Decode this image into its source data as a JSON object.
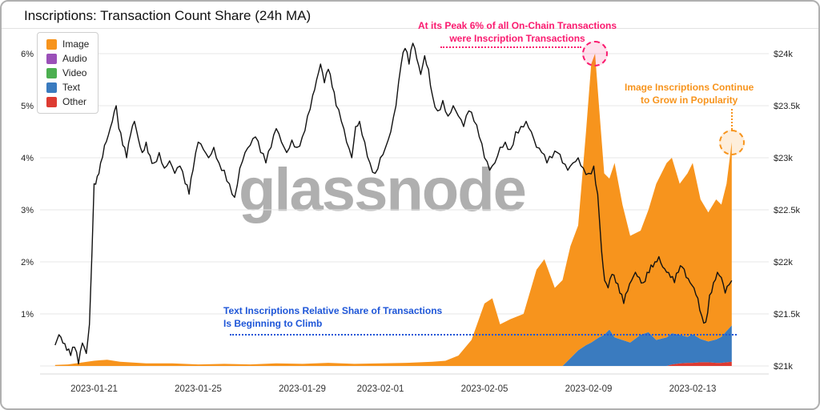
{
  "title": "Inscriptions: Transaction Count Share (24h MA)",
  "watermark": "glassnode",
  "legend": [
    {
      "label": "Image",
      "color": "#f7941d"
    },
    {
      "label": "Audio",
      "color": "#9b50b8"
    },
    {
      "label": "Video",
      "color": "#4caf50"
    },
    {
      "label": "Text",
      "color": "#3a7bbf"
    },
    {
      "label": "Other",
      "color": "#dd3b32"
    }
  ],
  "annotations": {
    "peak": {
      "line1": "At its Peak 6% of all On-Chain Transactions",
      "line2": "were Inscription Transactions",
      "color": "#fa1a6f"
    },
    "growth": {
      "line1": "Image Inscriptions Continue",
      "line2": "to Grow in Popularity",
      "color": "#f7941d"
    },
    "text": {
      "line1": "Text Inscriptions Relative Share of Transactions",
      "line2": "Is Beginning to Climb",
      "color": "#1e56d8"
    }
  },
  "chart_data": {
    "type": "line+stacked-area",
    "title": "Inscriptions: Transaction Count Share (24h MA)",
    "grid": true,
    "legend_position": "top-left",
    "x_axis": {
      "unit": "days since 2023-01-20",
      "tick_days": [
        1,
        5,
        9,
        12,
        16,
        20,
        24
      ],
      "tick_labels": [
        "2023-01-21",
        "2023-01-25",
        "2023-01-29",
        "2023-02-01",
        "2023-02-05",
        "2023-02-09",
        "2023-02-13"
      ]
    },
    "left_axis": {
      "unit": "share of transactions %",
      "range": [
        0,
        6
      ],
      "ticks": [
        "6%",
        "5%",
        "4%",
        "3%",
        "2%",
        "1%"
      ]
    },
    "right_axis": {
      "unit": "price USD",
      "range": [
        21,
        24
      ],
      "ticks": [
        "$24k",
        "$23.5k",
        "$23k",
        "$22.5k",
        "$22k",
        "$21.5k",
        "$21k"
      ]
    },
    "price_line": {
      "name": "price",
      "color": "#111111",
      "axis": "right",
      "points": [
        [
          -0.5,
          21.2
        ],
        [
          -0.35,
          21.3
        ],
        [
          -0.2,
          21.22
        ],
        [
          -0.05,
          21.15
        ],
        [
          0.1,
          21.1
        ],
        [
          0.25,
          21.18
        ],
        [
          0.4,
          21.02
        ],
        [
          0.55,
          21.22
        ],
        [
          0.7,
          21.12
        ],
        [
          0.82,
          21.4
        ],
        [
          0.92,
          22.1
        ],
        [
          1,
          22.75
        ],
        [
          1.12,
          22.82
        ],
        [
          1.25,
          22.95
        ],
        [
          1.4,
          23.12
        ],
        [
          1.55,
          23.22
        ],
        [
          1.7,
          23.35
        ],
        [
          1.85,
          23.5
        ],
        [
          1.95,
          23.28
        ],
        [
          2.1,
          23.12
        ],
        [
          2.25,
          23
        ],
        [
          2.4,
          23.22
        ],
        [
          2.55,
          23.35
        ],
        [
          2.7,
          23.18
        ],
        [
          2.85,
          23.05
        ],
        [
          3,
          23.15
        ],
        [
          3.15,
          23.02
        ],
        [
          3.3,
          22.95
        ],
        [
          3.5,
          23.05
        ],
        [
          3.7,
          22.9
        ],
        [
          3.9,
          22.97
        ],
        [
          4.1,
          22.85
        ],
        [
          4.3,
          22.92
        ],
        [
          4.5,
          22.75
        ],
        [
          4.65,
          22.65
        ],
        [
          4.8,
          22.88
        ],
        [
          5,
          23.15
        ],
        [
          5.2,
          23.08
        ],
        [
          5.4,
          23
        ],
        [
          5.6,
          23.1
        ],
        [
          5.8,
          22.95
        ],
        [
          6,
          22.88
        ],
        [
          6.2,
          22.75
        ],
        [
          6.4,
          22.62
        ],
        [
          6.6,
          22.9
        ],
        [
          6.8,
          23.05
        ],
        [
          7,
          23.12
        ],
        [
          7.2,
          23.2
        ],
        [
          7.4,
          23.05
        ],
        [
          7.6,
          22.95
        ],
        [
          7.8,
          23.1
        ],
        [
          8,
          23.28
        ],
        [
          8.2,
          23.15
        ],
        [
          8.4,
          23.05
        ],
        [
          8.6,
          23.17
        ],
        [
          8.8,
          23.1
        ],
        [
          9,
          23.2
        ],
        [
          9.2,
          23.4
        ],
        [
          9.4,
          23.6
        ],
        [
          9.55,
          23.75
        ],
        [
          9.7,
          23.9
        ],
        [
          9.85,
          23.72
        ],
        [
          10,
          23.85
        ],
        [
          10.15,
          23.68
        ],
        [
          10.3,
          23.5
        ],
        [
          10.5,
          23.35
        ],
        [
          10.7,
          23.15
        ],
        [
          10.9,
          23
        ],
        [
          11.05,
          23.3
        ],
        [
          11.2,
          23.35
        ],
        [
          11.4,
          23.15
        ],
        [
          11.6,
          22.95
        ],
        [
          11.8,
          22.85
        ],
        [
          12,
          23
        ],
        [
          12.2,
          23.1
        ],
        [
          12.4,
          23.25
        ],
        [
          12.6,
          23.5
        ],
        [
          12.8,
          23.9
        ],
        [
          12.95,
          24.05
        ],
        [
          13.1,
          23.9
        ],
        [
          13.25,
          24.1
        ],
        [
          13.4,
          23.95
        ],
        [
          13.55,
          23.8
        ],
        [
          13.7,
          23.98
        ],
        [
          13.85,
          23.85
        ],
        [
          14,
          23.6
        ],
        [
          14.2,
          23.45
        ],
        [
          14.4,
          23.55
        ],
        [
          14.6,
          23.4
        ],
        [
          14.8,
          23.5
        ],
        [
          15,
          23.4
        ],
        [
          15.2,
          23.3
        ],
        [
          15.4,
          23.45
        ],
        [
          15.6,
          23.35
        ],
        [
          15.8,
          23.2
        ],
        [
          16,
          23
        ],
        [
          16.2,
          22.88
        ],
        [
          16.4,
          22.95
        ],
        [
          16.6,
          23.1
        ],
        [
          16.8,
          23.15
        ],
        [
          17,
          23.08
        ],
        [
          17.2,
          23.25
        ],
        [
          17.4,
          23.3
        ],
        [
          17.6,
          23.35
        ],
        [
          17.8,
          23.25
        ],
        [
          18,
          23.1
        ],
        [
          18.2,
          23.05
        ],
        [
          18.4,
          22.95
        ],
        [
          18.6,
          23
        ],
        [
          18.8,
          23.05
        ],
        [
          19,
          22.95
        ],
        [
          19.2,
          22.88
        ],
        [
          19.4,
          22.95
        ],
        [
          19.6,
          23
        ],
        [
          19.8,
          22.9
        ],
        [
          20,
          22.85
        ],
        [
          20.2,
          22.92
        ],
        [
          20.35,
          22.65
        ],
        [
          20.5,
          22.1
        ],
        [
          20.62,
          21.82
        ],
        [
          20.75,
          21.75
        ],
        [
          20.9,
          21.88
        ],
        [
          21.05,
          21.8
        ],
        [
          21.2,
          21.7
        ],
        [
          21.35,
          21.6
        ],
        [
          21.5,
          21.72
        ],
        [
          21.65,
          21.82
        ],
        [
          21.8,
          21.9
        ],
        [
          21.95,
          21.85
        ],
        [
          22.1,
          21.8
        ],
        [
          22.25,
          21.9
        ],
        [
          22.4,
          21.97
        ],
        [
          22.55,
          22
        ],
        [
          22.7,
          22.05
        ],
        [
          22.85,
          21.95
        ],
        [
          23,
          21.9
        ],
        [
          23.15,
          21.85
        ],
        [
          23.3,
          21.8
        ],
        [
          23.45,
          21.9
        ],
        [
          23.6,
          21.95
        ],
        [
          23.75,
          21.85
        ],
        [
          23.9,
          21.8
        ],
        [
          24.05,
          21.75
        ],
        [
          24.2,
          21.65
        ],
        [
          24.35,
          21.48
        ],
        [
          24.5,
          21.42
        ],
        [
          24.65,
          21.68
        ],
        [
          24.8,
          21.8
        ],
        [
          24.95,
          21.9
        ],
        [
          25.1,
          21.85
        ],
        [
          25.25,
          21.7
        ],
        [
          25.4,
          21.78
        ],
        [
          25.5,
          21.82
        ]
      ]
    },
    "share_series": {
      "axis": "left",
      "x": [
        -0.5,
        0,
        1,
        1.5,
        2,
        3,
        4,
        5,
        6,
        7,
        8,
        9,
        10,
        11,
        12,
        13,
        14,
        14.5,
        15,
        15.5,
        16,
        16.3,
        16.6,
        17,
        17.5,
        18,
        18.3,
        18.7,
        19,
        19.3,
        19.6,
        19.9,
        20.1,
        20.25,
        20.4,
        20.6,
        20.8,
        21,
        21.3,
        21.6,
        22,
        22.3,
        22.6,
        23,
        23.2,
        23.5,
        23.8,
        24,
        24.3,
        24.6,
        24.9,
        25.1,
        25.3,
        25.5
      ],
      "stack_order_bottom_to_top": [
        "Other",
        "Text",
        "Video",
        "Audio",
        "Image"
      ],
      "series": [
        {
          "name": "Other",
          "color": "#dd3b32",
          "values": [
            0,
            0,
            0,
            0,
            0,
            0,
            0,
            0,
            0,
            0,
            0,
            0,
            0,
            0,
            0,
            0,
            0,
            0,
            0,
            0,
            0,
            0,
            0,
            0,
            0,
            0,
            0,
            0,
            0,
            0,
            0,
            0,
            0,
            0,
            0,
            0,
            0,
            0,
            0,
            0,
            0,
            0,
            0,
            0,
            0.03,
            0.05,
            0.06,
            0.06,
            0.07,
            0.07,
            0.06,
            0.06,
            0.07,
            0.08
          ]
        },
        {
          "name": "Text",
          "color": "#3a7bbf",
          "values": [
            0,
            0,
            0,
            0,
            0,
            0,
            0,
            0,
            0,
            0,
            0,
            0,
            0,
            0,
            0,
            0,
            0,
            0,
            0,
            0,
            0,
            0,
            0,
            0,
            0,
            0,
            0,
            0,
            0,
            0.15,
            0.3,
            0.4,
            0.45,
            0.5,
            0.55,
            0.6,
            0.7,
            0.55,
            0.5,
            0.45,
            0.6,
            0.65,
            0.5,
            0.55,
            0.6,
            0.55,
            0.5,
            0.55,
            0.45,
            0.4,
            0.45,
            0.5,
            0.6,
            0.7
          ]
        },
        {
          "name": "Video",
          "color": "#4caf50",
          "values": [
            0,
            0,
            0,
            0,
            0,
            0,
            0,
            0,
            0,
            0,
            0,
            0,
            0,
            0,
            0,
            0,
            0,
            0,
            0,
            0,
            0,
            0,
            0,
            0,
            0,
            0,
            0,
            0,
            0,
            0,
            0,
            0,
            0,
            0,
            0,
            0,
            0,
            0,
            0,
            0,
            0,
            0,
            0,
            0,
            0,
            0,
            0,
            0,
            0,
            0,
            0,
            0,
            0,
            0
          ]
        },
        {
          "name": "Audio",
          "color": "#9b50b8",
          "values": [
            0,
            0,
            0,
            0,
            0,
            0,
            0,
            0,
            0,
            0,
            0,
            0,
            0,
            0,
            0,
            0,
            0,
            0,
            0,
            0,
            0,
            0,
            0,
            0,
            0,
            0,
            0,
            0,
            0,
            0,
            0,
            0,
            0,
            0,
            0,
            0,
            0,
            0,
            0,
            0,
            0,
            0,
            0,
            0,
            0,
            0,
            0,
            0,
            0,
            0,
            0,
            0,
            0,
            0
          ]
        },
        {
          "name": "Image",
          "color": "#f7941d",
          "values": [
            0.02,
            0.03,
            0.1,
            0.12,
            0.08,
            0.05,
            0.05,
            0.03,
            0.04,
            0.03,
            0.05,
            0.04,
            0.06,
            0.04,
            0.05,
            0.06,
            0.08,
            0.1,
            0.2,
            0.5,
            1.2,
            1.3,
            0.8,
            0.9,
            1.0,
            1.85,
            2.05,
            1.5,
            1.65,
            2.15,
            2.4,
            4.1,
            5.35,
            5.5,
            4.45,
            3.1,
            2.9,
            3.35,
            2.6,
            2.05,
            2.0,
            2.35,
            3.0,
            3.35,
            3.37,
            2.9,
            3.14,
            3.29,
            2.68,
            2.48,
            2.69,
            2.54,
            2.83,
            3.52
          ]
        }
      ],
      "peak_total_pct": 6.0,
      "end_total_pct": 4.3
    }
  }
}
